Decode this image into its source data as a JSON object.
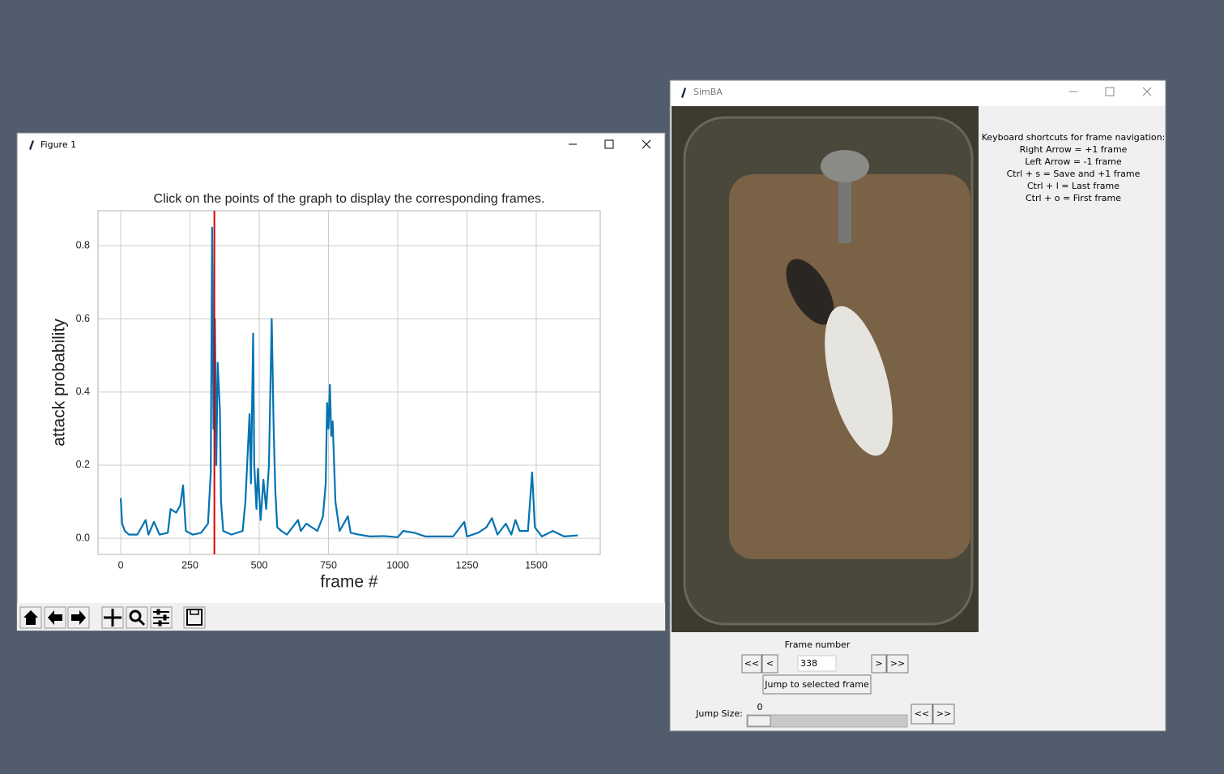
{
  "figure_window": {
    "title": "Figure 1"
  },
  "chart_data": {
    "type": "line",
    "title": "Click on the points of the graph to display the corresponding frames.",
    "x_label": "frame #",
    "y_label": "attack probability",
    "x": [
      0,
      5,
      15,
      30,
      60,
      90,
      100,
      120,
      140,
      170,
      180,
      200,
      215,
      225,
      235,
      260,
      290,
      315,
      325,
      330,
      335,
      340,
      345,
      350,
      358,
      362,
      370,
      400,
      440,
      450,
      465,
      470,
      478,
      482,
      490,
      495,
      505,
      515,
      525,
      535,
      545,
      552,
      558,
      565,
      580,
      600,
      640,
      650,
      670,
      690,
      710,
      730,
      740,
      745,
      750,
      755,
      760,
      765,
      775,
      790,
      820,
      830,
      860,
      900,
      950,
      1000,
      1020,
      1060,
      1100,
      1150,
      1200,
      1240,
      1250,
      1290,
      1320,
      1340,
      1360,
      1390,
      1410,
      1425,
      1440,
      1470,
      1485,
      1495,
      1520,
      1560,
      1600,
      1650
    ],
    "values": [
      0.11,
      0.04,
      0.02,
      0.01,
      0.01,
      0.05,
      0.01,
      0.045,
      0.01,
      0.015,
      0.08,
      0.07,
      0.09,
      0.145,
      0.02,
      0.01,
      0.015,
      0.04,
      0.18,
      0.85,
      0.3,
      0.6,
      0.2,
      0.48,
      0.35,
      0.1,
      0.02,
      0.01,
      0.02,
      0.1,
      0.34,
      0.15,
      0.56,
      0.2,
      0.08,
      0.19,
      0.05,
      0.16,
      0.08,
      0.2,
      0.6,
      0.3,
      0.13,
      0.03,
      0.02,
      0.01,
      0.05,
      0.02,
      0.04,
      0.03,
      0.02,
      0.06,
      0.15,
      0.37,
      0.3,
      0.42,
      0.28,
      0.32,
      0.1,
      0.02,
      0.06,
      0.015,
      0.01,
      0.005,
      0.006,
      0.003,
      0.02,
      0.015,
      0.005,
      0.005,
      0.005,
      0.045,
      0.005,
      0.015,
      0.03,
      0.055,
      0.01,
      0.04,
      0.01,
      0.05,
      0.02,
      0.02,
      0.18,
      0.03,
      0.005,
      0.02,
      0.005,
      0.008
    ],
    "color": "#0173b2",
    "marker_color": "#e00000",
    "xlim": [
      -82,
      1731
    ],
    "ylim": [
      -0.044,
      0.896
    ],
    "xticks": [
      0,
      250,
      500,
      750,
      1000,
      1250,
      1500
    ],
    "yticks": [
      {
        "value": 0,
        "label": "0.0"
      },
      0.2,
      0.4,
      0.6,
      0.8
    ],
    "grid": true
  },
  "simba": {
    "title": "SimBA",
    "shortcuts_title": "Keyboard shortcuts for frame navigation:",
    "shortcuts": [
      "Right Arrow = +1 frame",
      "Left Arrow = -1 frame",
      "Ctrl + s = Save and +1 frame",
      "Ctrl + l = Last frame",
      "Ctrl + o = First frame"
    ],
    "frame_number_label": "Frame number",
    "frame_value": 338,
    "first": "<<",
    "prev": "<",
    "next": ">",
    "last": ">>",
    "jump_button": "Jump to selected frame",
    "jump_size_label": "Jump Size:",
    "jump_size": 0,
    "jump_back": "<<",
    "jump_forward": ">>"
  }
}
